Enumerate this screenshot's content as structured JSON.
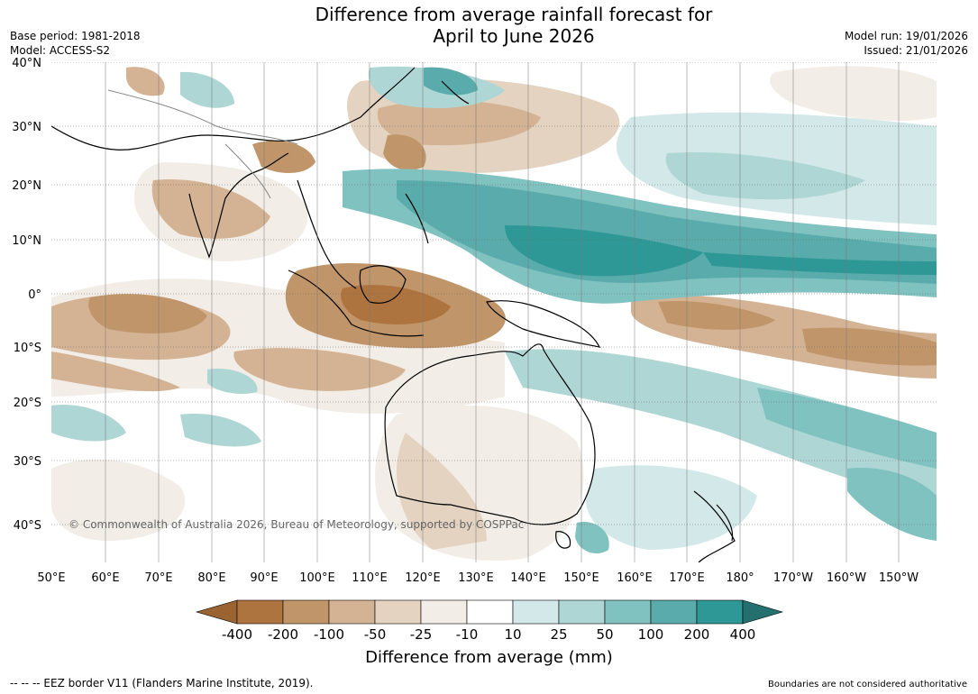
{
  "title_line1": "Difference from average rainfall forecast for",
  "title_line2": "April to June 2026",
  "base_period": "Base period: 1981-2018",
  "model": "Model: ACCESS-S2",
  "model_run": "Model run: 19/01/2026",
  "issued": "Issued: 21/01/2026",
  "copyright": "© Commonwealth of Australia 2026, Bureau of Meteorology, supported by COSPPac",
  "lat_labels": [
    "40°N",
    "30°N",
    "20°N",
    "10°N",
    "0°",
    "10°S",
    "20°S",
    "30°S",
    "40°S"
  ],
  "lon_labels": [
    "50°E",
    "60°E",
    "70°E",
    "80°E",
    "90°E",
    "100°E",
    "110°E",
    "120°E",
    "130°E",
    "140°E",
    "150°E",
    "160°E",
    "170°E",
    "180°",
    "170°W",
    "160°W",
    "150°W"
  ],
  "colorbar": {
    "title": "Difference from average (mm)",
    "tick_labels": [
      "-400",
      "-200",
      "-100",
      "-50",
      "-25",
      "-10",
      "10",
      "25",
      "50",
      "100",
      "200",
      "400"
    ],
    "colors": [
      "#9b6331",
      "#ae7440",
      "#c0956a",
      "#d3b393",
      "#e4d3c1",
      "#f2ede7",
      "#ffffff",
      "#d3e8e8",
      "#aed6d5",
      "#80c2c0",
      "#5aabab",
      "#2e9896",
      "#23706f"
    ]
  },
  "footer_left": "--  --  -- EEZ border V11 (Flanders Marine Institute, 2019).",
  "footer_right": "Boundaries are not considered authoritative",
  "palette": {
    "ocean": "#ffffff",
    "land_outline": "#000000",
    "grid": "#666666"
  }
}
